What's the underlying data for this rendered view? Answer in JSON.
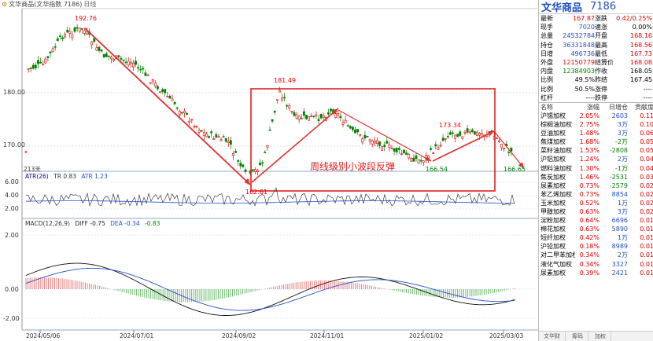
{
  "window": {
    "title": "文华商品(文华指数 7186)",
    "period": "日线"
  },
  "chart": {
    "y_axis_labels": [
      "180.00",
      "170.00"
    ],
    "volume_label": "213天",
    "atr_label": "ATR(26)",
    "atr_tr": "TR 0.83",
    "atr_value": "ATR 1.23",
    "atr_axis": [
      "6.00",
      "4.00",
      "2.00"
    ],
    "macd_label": "MACD(12,26,9)",
    "macd_diff": "DIFF -0.75",
    "macd_dea": "DEA -0.34",
    "macd_value": "-0.83",
    "macd_axis": [
      "2.00",
      "0.00",
      "-2.00"
    ],
    "dates": [
      "2024/05/06",
      "2024/07/01",
      "2024/09/02",
      "2024/11/01",
      "2025/01/02",
      "2025/03/03"
    ],
    "annotations": {
      "high1": "192.76",
      "low1": "162.61",
      "high2": "181.49",
      "high3": "173.34",
      "low2": "166.54",
      "low3": "166.65",
      "box_text": "周线级别小波段反弹"
    },
    "colors": {
      "up": "#e00000",
      "down": "#008000",
      "arrow": "#e03030",
      "box": "#e02020"
    }
  },
  "quote": {
    "name": "文华商品",
    "code": "7186",
    "rows": [
      [
        "最新",
        "167.87",
        "涨跌",
        "0.42/0.25%"
      ],
      [
        "现手",
        "7020",
        "速涨",
        "0.00%"
      ],
      [
        "总量",
        "24532784",
        "开盘",
        "168.16"
      ],
      [
        "持仓",
        "36331848",
        "最高",
        "168.56"
      ],
      [
        "日增",
        "496736",
        "最低",
        "167.73"
      ],
      [
        "外盘",
        "12150779",
        "结算价",
        "168.08"
      ],
      [
        "内盘",
        "12384903",
        "作收",
        "168.05"
      ],
      [
        "比例",
        "49.5%",
        "昨结",
        "167.45"
      ],
      [
        "比例",
        "50.5%",
        "涨停",
        "----"
      ],
      [
        "杠杆",
        "----",
        "跌停",
        "----"
      ]
    ]
  },
  "sectors": {
    "headers": [
      "名称",
      "涨幅",
      "日增仓",
      "贡献度"
    ],
    "rows": [
      [
        "沪锡加权",
        "2.05%",
        "2603",
        "0.11"
      ],
      [
        "棕榈油加权",
        "2.75%",
        "3万",
        "0.10"
      ],
      [
        "豆油加权",
        "1.48%",
        "3万",
        "0.06"
      ],
      [
        "焦煤加权",
        "1.68%",
        "-2万",
        "0.05"
      ],
      [
        "菜籽油加权",
        "1.53%",
        "-2808",
        "0.05"
      ],
      [
        "沪铝加权",
        "1.24%",
        "2万",
        "0.04"
      ],
      [
        "燃料油加权",
        "1.30%",
        "-1万",
        "0.04"
      ],
      [
        "焦炭加权",
        "1.46%",
        "-2531",
        "0.03"
      ],
      [
        "尿素加权",
        "0.73%",
        "-2579",
        "0.02"
      ],
      [
        "苯乙烯加权",
        "0.73%",
        "8854",
        "0.02"
      ],
      [
        "玉米加权",
        "0.52%",
        "1万",
        "0.02"
      ],
      [
        "甲醇加权",
        "0.63%",
        "3万",
        "0.02"
      ],
      [
        "淀粉加权",
        "0.64%",
        "6696",
        "0.01"
      ],
      [
        "棉花加权",
        "0.63%",
        "5890",
        "0.01"
      ],
      [
        "短纤加权",
        "0.42%",
        "1万",
        "0.01"
      ],
      [
        "沪铅加权",
        "0.18%",
        "8989",
        "0.01"
      ],
      [
        "对二甲苯加权",
        "0.34%",
        "2万",
        "0.01"
      ],
      [
        "液化气加权",
        "0.34%",
        "3327",
        "0.01"
      ],
      [
        "尿素加权",
        "0.39%",
        "2421",
        "0.01"
      ]
    ]
  },
  "tabs": [
    "文华财",
    "筹码",
    "加权"
  ]
}
